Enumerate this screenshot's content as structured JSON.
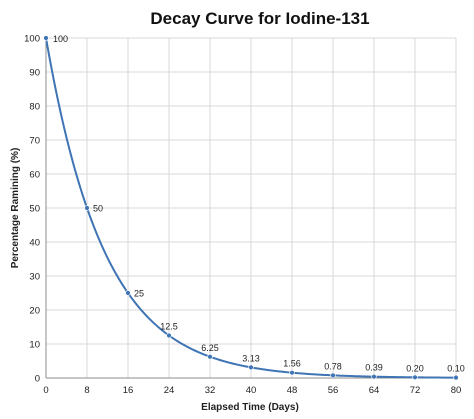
{
  "chart_data": {
    "type": "scatter",
    "title": "Decay Curve for Iodine-131",
    "xlabel": "Elapsed Time (Days)",
    "ylabel": "Percentage Ramining (%)",
    "x": [
      0,
      8,
      16,
      24,
      32,
      40,
      48,
      56,
      64,
      72,
      80
    ],
    "y": [
      100,
      50,
      25,
      12.5,
      6.25,
      3.13,
      1.56,
      0.78,
      0.39,
      0.2,
      0.1
    ],
    "data_labels": [
      "100",
      "50",
      "25",
      "12.5",
      "6.25",
      "3.13",
      "1.56",
      "0.78",
      "0.39",
      "0.20",
      "0.10"
    ],
    "xticks": [
      "0",
      "8",
      "16",
      "24",
      "32",
      "40",
      "48",
      "56",
      "64",
      "72",
      "80"
    ],
    "yticks": [
      "0",
      "10",
      "20",
      "30",
      "40",
      "50",
      "60",
      "70",
      "80",
      "90",
      "100"
    ],
    "xlim": [
      0,
      80
    ],
    "ylim": [
      0,
      100
    ],
    "grid": true,
    "smooth_line": true,
    "series_color": "#3f74b5",
    "grid_color": "#d9d9d9"
  }
}
